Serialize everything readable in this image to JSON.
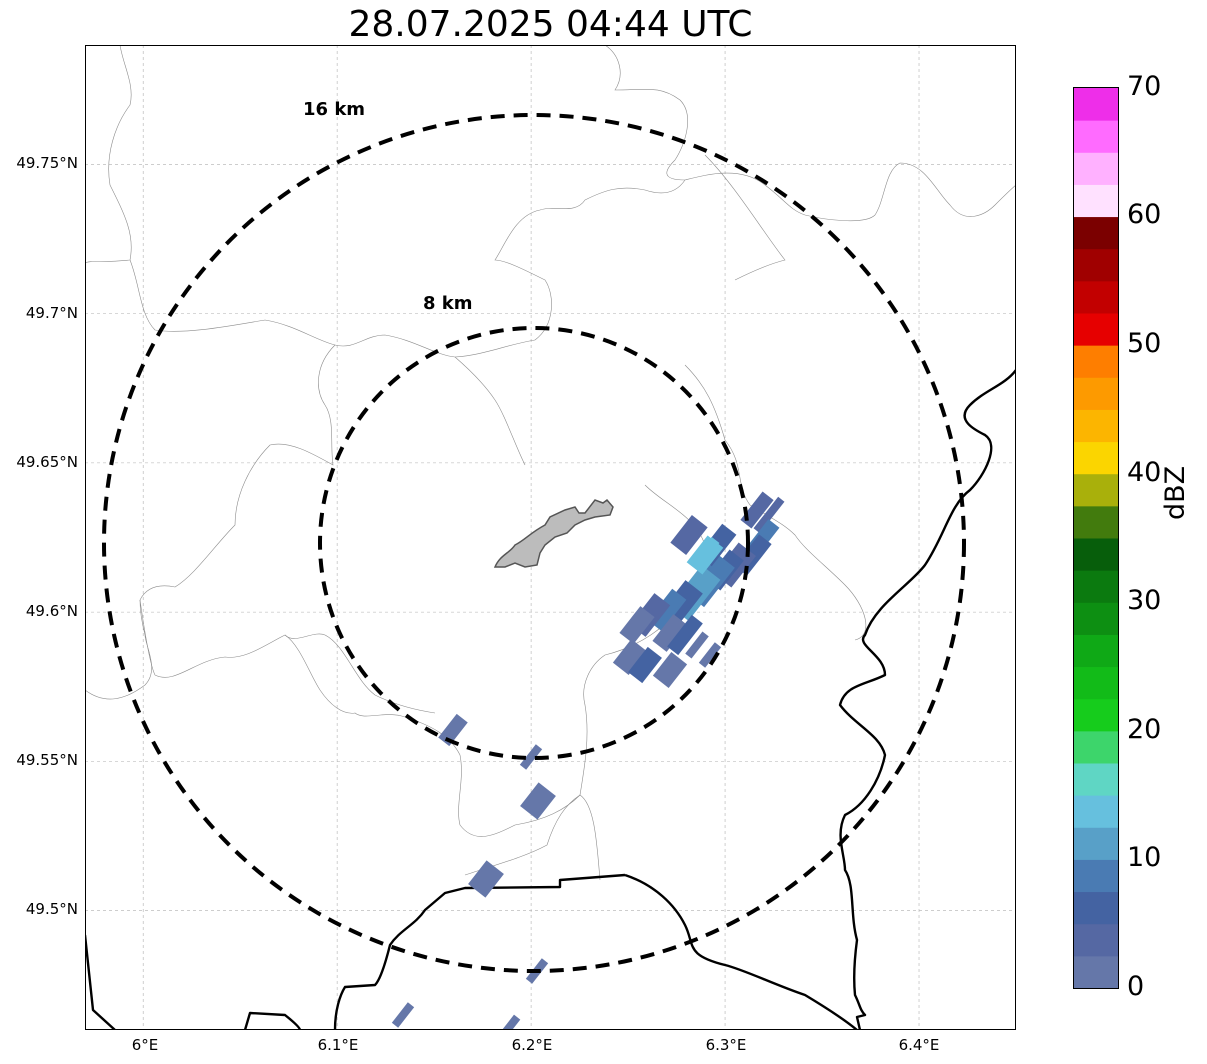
{
  "title": "28.07.2025 04:44 UTC",
  "map": {
    "lon_range": [
      5.97,
      6.45
    ],
    "lat_range": [
      49.46,
      49.79
    ],
    "lon_ticks": [
      6.0,
      6.1,
      6.2,
      6.3,
      6.4
    ],
    "lon_tick_labels": [
      "6°E",
      "6.1°E",
      "6.2°E",
      "6.3°E",
      "6.4°E"
    ],
    "lat_ticks": [
      49.5,
      49.55,
      49.6,
      49.65,
      49.7,
      49.75
    ],
    "lat_tick_labels": [
      "49.5°N",
      "49.55°N",
      "49.6°N",
      "49.65°N",
      "49.7°N",
      "49.75°N"
    ],
    "gridlines": true,
    "radar_center": {
      "lon": 6.204,
      "lat": 49.623
    },
    "range_rings": [
      {
        "label": "8 km",
        "radius_km": 8
      },
      {
        "label": "16 km",
        "radius_km": 16
      }
    ],
    "urban_area": "gray-shaded-city-outline",
    "layers": [
      "national-borders",
      "municipal-boundaries",
      "reflectivity-echoes"
    ]
  },
  "colorbar": {
    "label": "dBZ",
    "ticks": [
      "0",
      "10",
      "20",
      "30",
      "40",
      "50",
      "60",
      "70"
    ],
    "colors": [
      "#6577a9",
      "#5568a3",
      "#4463a2",
      "#4a7bb3",
      "#58a0c8",
      "#66c0de",
      "#5fd6c4",
      "#3dd56b",
      "#16cc1c",
      "#12bb18",
      "#0fa916",
      "#0d8f12",
      "#0b7a0f",
      "#075e0b",
      "#427b0d",
      "#a9b00b",
      "#fbd500",
      "#fcb500",
      "#fd9a00",
      "#fe7e00",
      "#e60000",
      "#c20000",
      "#a00000",
      "#7b0000",
      "#ffe1ff",
      "#ffb1ff",
      "#ff6bff",
      "#ee2ee9"
    ]
  }
}
